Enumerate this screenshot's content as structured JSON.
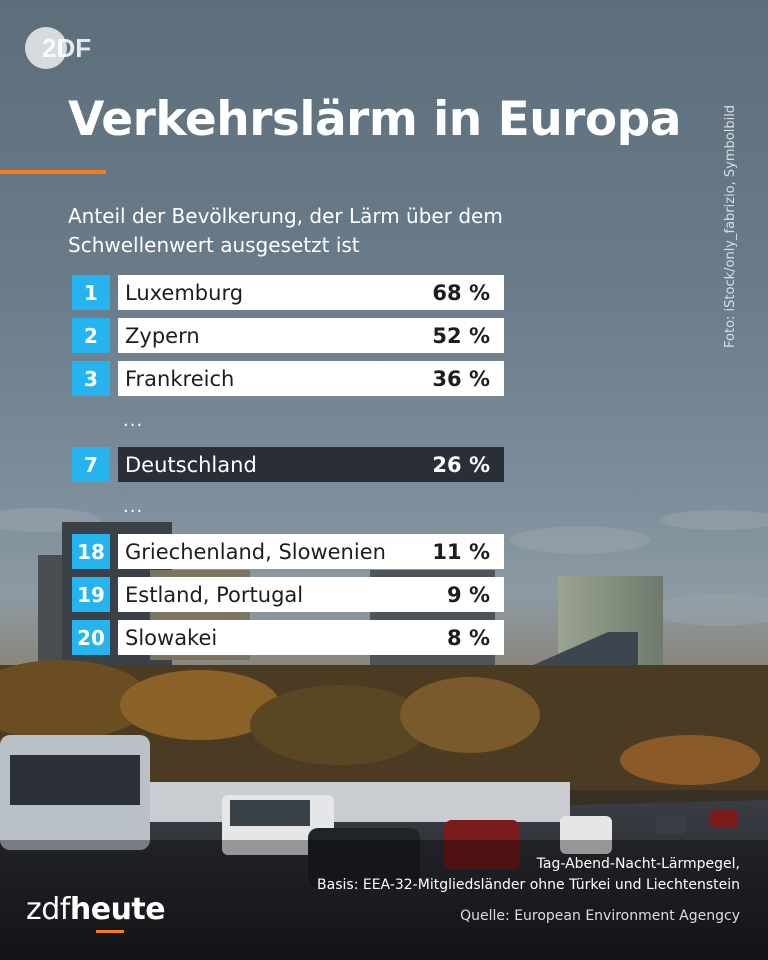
{
  "brand": {
    "logo": "2DF",
    "logo_bottom_prefix": "zdf",
    "logo_bottom_suffix": "heute"
  },
  "title": "Verkehrslärm in Europa",
  "subtitle": "Anteil der Bevölkerung, der Lärm über dem Schwellenwert ausgesetzt ist",
  "credit": "Foto: iStock/only_fabrizio, Symbolbild",
  "colors": {
    "accent": "#fa7d19",
    "rank_bg": "#25b4f0",
    "highlight_bar": "#2a2e37",
    "bar": "#ffffff"
  },
  "chart_data": {
    "type": "table",
    "title": "Verkehrslärm in Europa",
    "unit": "%",
    "gap_marker": "...",
    "rows": [
      {
        "rank": "1",
        "country": "Luxemburg",
        "value": 68,
        "value_label": "68 %"
      },
      {
        "rank": "2",
        "country": "Zypern",
        "value": 52,
        "value_label": "52 %"
      },
      {
        "rank": "3",
        "country": "Frankreich",
        "value": 36,
        "value_label": "36 %"
      },
      {
        "rank": "7",
        "country": "Deutschland",
        "value": 26,
        "value_label": "26 %",
        "highlight": true
      },
      {
        "rank": "18",
        "country": "Griechenland, Slowenien",
        "value": 11,
        "value_label": "11 %"
      },
      {
        "rank": "19",
        "country": "Estland, Portugal",
        "value": 9,
        "value_label": "9 %"
      },
      {
        "rank": "20",
        "country": "Slowakei",
        "value": 8,
        "value_label": "8 %"
      }
    ]
  },
  "footnote": {
    "line1": "Tag-Abend-Nacht-Lärmpegel,",
    "line2": "Basis: EEA-32-Mitgliedsländer ohne Türkei und Liechtenstein",
    "source": "Quelle: European Environment Agengcy"
  }
}
